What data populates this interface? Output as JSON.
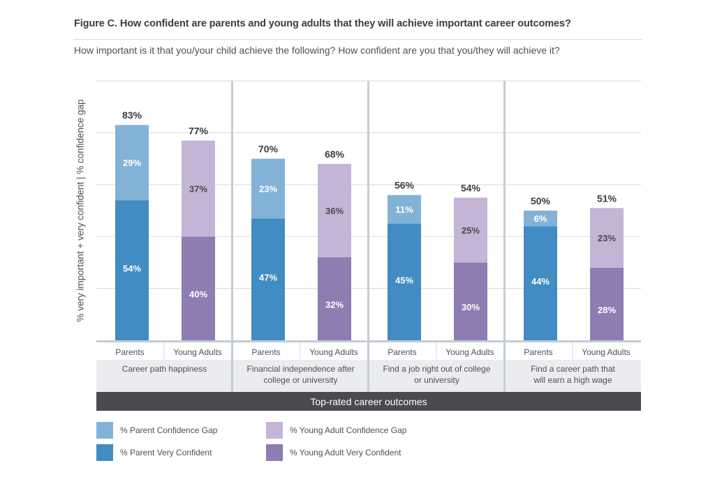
{
  "header": {
    "title": "Figure C. How confident are parents and young adults that they will achieve important career outcomes?",
    "subtitle": "How important is it that you/your child achieve the following? How confident are you that you/they will achieve it?"
  },
  "colors": {
    "parent_gap": "#82b3d7",
    "parent_confident": "#418cc3",
    "young_gap": "#c4b4d6",
    "young_confident": "#8f7cb2",
    "footer_band": "#4a4a4f",
    "label_band": "#ebecef",
    "grid": "#d9dde5",
    "separator": "#c5ccd5"
  },
  "chart_data": {
    "type": "bar",
    "stacked": true,
    "title": "Figure C. How confident are parents and young adults that they will achieve important career outcomes?",
    "subtitle": "How important is it that you/your child achieve the following? How confident are you that you/they will achieve it?",
    "xlabel": "Top-rated career outcomes",
    "ylabel": "% very important + very confident | % confidence gap",
    "ylim": [
      0,
      100
    ],
    "yticks": [
      0,
      20,
      40,
      60,
      80,
      100
    ],
    "grid": true,
    "tick_labels_shown": false,
    "legend_position": "bottom-left",
    "subgroups": [
      "Parents",
      "Young Adults"
    ],
    "categories": [
      "Career path happiness",
      "Financial independence after college or university",
      "Find a job right out of college or university",
      "Find a career path that will earn a high wage"
    ],
    "category_lines": [
      [
        "Career path happiness"
      ],
      [
        "Financial independence after",
        "college or university"
      ],
      [
        "Find a job right out of college",
        "or university"
      ],
      [
        "Find a career path that",
        "will earn a high wage"
      ]
    ],
    "series": [
      {
        "name": "% Parent Very Confident",
        "subgroup": "Parents",
        "layer": "confident",
        "values": [
          54,
          47,
          45,
          44
        ]
      },
      {
        "name": "% Parent Confidence Gap",
        "subgroup": "Parents",
        "layer": "gap",
        "values": [
          29,
          23,
          11,
          6
        ]
      },
      {
        "name": "% Young Adult Very Confident",
        "subgroup": "Young Adults",
        "layer": "confident",
        "values": [
          40,
          32,
          30,
          28
        ]
      },
      {
        "name": "% Young Adult Confidence Gap",
        "subgroup": "Young Adults",
        "layer": "gap",
        "values": [
          37,
          36,
          25,
          23
        ]
      }
    ],
    "totals": {
      "Parents": [
        83,
        70,
        56,
        50
      ],
      "Young Adults": [
        77,
        68,
        54,
        51
      ]
    },
    "legend": [
      {
        "label": "% Parent Confidence Gap",
        "color_key": "parent_gap"
      },
      {
        "label": "% Young Adult Confidence Gap",
        "color_key": "young_gap"
      },
      {
        "label": "% Parent Very Confident",
        "color_key": "parent_confident"
      },
      {
        "label": "% Young Adult Very Confident",
        "color_key": "young_confident"
      }
    ]
  }
}
